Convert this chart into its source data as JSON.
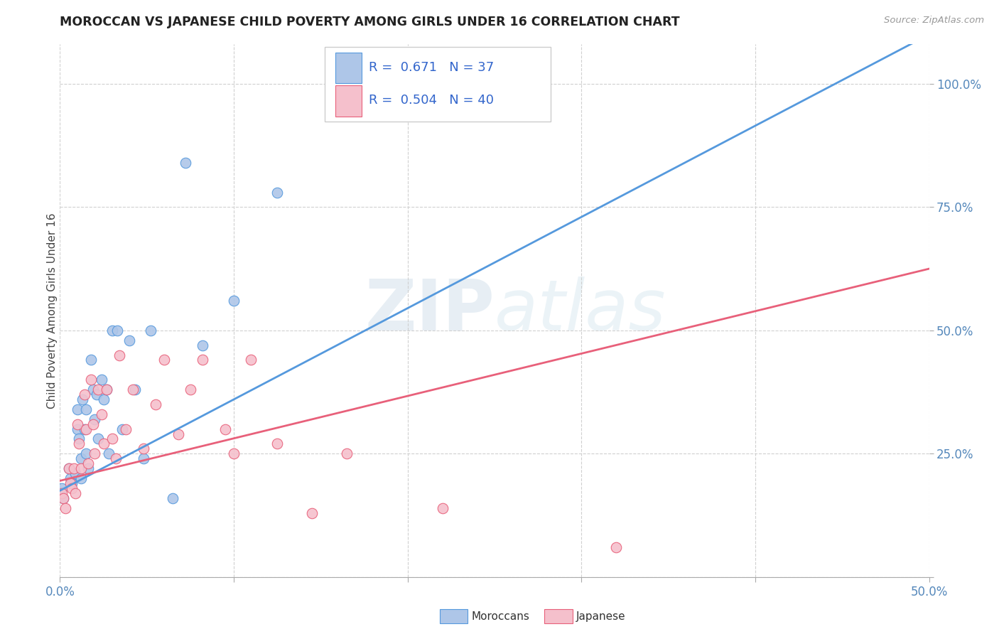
{
  "title": "MOROCCAN VS JAPANESE CHILD POVERTY AMONG GIRLS UNDER 16 CORRELATION CHART",
  "source": "Source: ZipAtlas.com",
  "ylabel": "Child Poverty Among Girls Under 16",
  "right_yticks": [
    0.0,
    0.25,
    0.5,
    0.75,
    1.0
  ],
  "right_yticklabels": [
    "",
    "25.0%",
    "50.0%",
    "75.0%",
    "100.0%"
  ],
  "xmin": 0.0,
  "xmax": 0.5,
  "ymin": 0.0,
  "ymax": 1.08,
  "moroccan_R": 0.671,
  "moroccan_N": 37,
  "japanese_R": 0.504,
  "japanese_N": 40,
  "moroccan_color": "#aec6e8",
  "moroccan_line_color": "#5599dd",
  "japanese_color": "#f5c0cc",
  "japanese_line_color": "#e8607a",
  "moroccan_scatter_x": [
    0.001,
    0.002,
    0.005,
    0.006,
    0.007,
    0.009,
    0.01,
    0.01,
    0.011,
    0.012,
    0.012,
    0.013,
    0.014,
    0.015,
    0.015,
    0.016,
    0.018,
    0.019,
    0.02,
    0.021,
    0.022,
    0.024,
    0.025,
    0.027,
    0.028,
    0.03,
    0.033,
    0.036,
    0.04,
    0.043,
    0.048,
    0.052,
    0.065,
    0.072,
    0.082,
    0.1,
    0.125
  ],
  "moroccan_scatter_y": [
    0.18,
    0.16,
    0.22,
    0.2,
    0.19,
    0.21,
    0.34,
    0.3,
    0.28,
    0.24,
    0.2,
    0.36,
    0.3,
    0.34,
    0.25,
    0.22,
    0.44,
    0.38,
    0.32,
    0.37,
    0.28,
    0.4,
    0.36,
    0.38,
    0.25,
    0.5,
    0.5,
    0.3,
    0.48,
    0.38,
    0.24,
    0.5,
    0.16,
    0.84,
    0.47,
    0.56,
    0.78
  ],
  "japanese_scatter_x": [
    0.001,
    0.002,
    0.003,
    0.005,
    0.006,
    0.007,
    0.008,
    0.009,
    0.01,
    0.011,
    0.012,
    0.014,
    0.015,
    0.016,
    0.018,
    0.019,
    0.02,
    0.022,
    0.024,
    0.025,
    0.027,
    0.03,
    0.032,
    0.034,
    0.038,
    0.042,
    0.048,
    0.055,
    0.06,
    0.068,
    0.075,
    0.082,
    0.095,
    0.1,
    0.11,
    0.125,
    0.145,
    0.165,
    0.22,
    0.32
  ],
  "japanese_scatter_y": [
    0.17,
    0.16,
    0.14,
    0.22,
    0.19,
    0.18,
    0.22,
    0.17,
    0.31,
    0.27,
    0.22,
    0.37,
    0.3,
    0.23,
    0.4,
    0.31,
    0.25,
    0.38,
    0.33,
    0.27,
    0.38,
    0.28,
    0.24,
    0.45,
    0.3,
    0.38,
    0.26,
    0.35,
    0.44,
    0.29,
    0.38,
    0.44,
    0.3,
    0.25,
    0.44,
    0.27,
    0.13,
    0.25,
    0.14,
    0.06
  ],
  "moroccan_line_x0": 0.0,
  "moroccan_line_x1": 0.5,
  "moroccan_line_y0": 0.175,
  "moroccan_line_y1": 1.1,
  "japanese_line_x0": 0.0,
  "japanese_line_x1": 0.5,
  "japanese_line_y0": 0.195,
  "japanese_line_y1": 0.625,
  "watermark_zip": "ZIP",
  "watermark_atlas": "atlas",
  "background_color": "#ffffff",
  "grid_color": "#d0d0d0",
  "legend_R1": "R = ",
  "legend_V1": "0.671",
  "legend_N1": "  N = ",
  "legend_NV1": "37",
  "legend_R2": "R = ",
  "legend_V2": "0.504",
  "legend_N2": "  N = ",
  "legend_NV2": "40",
  "bottom_legend1": "Moroccans",
  "bottom_legend2": "Japanese"
}
